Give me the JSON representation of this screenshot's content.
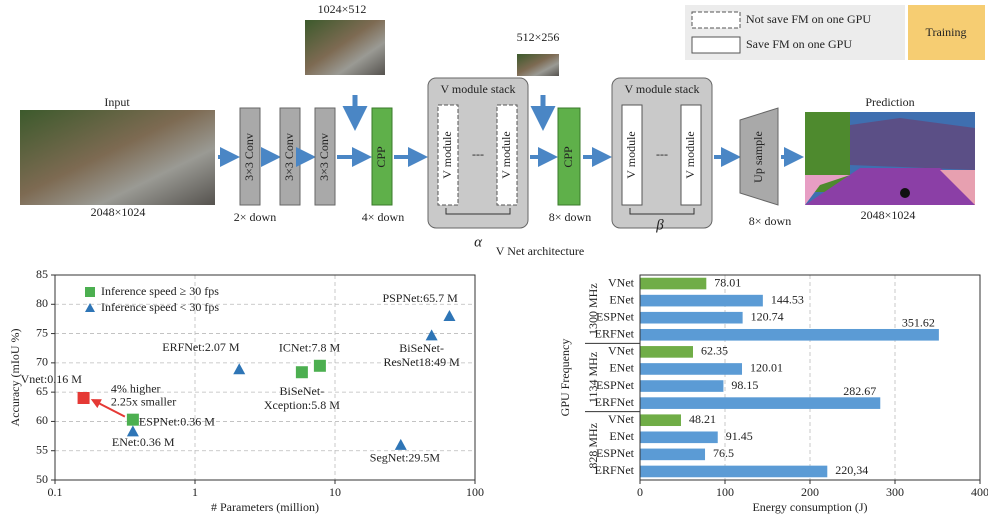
{
  "diagram": {
    "sizes": {
      "mid": "1024×512",
      "small": "512×256"
    },
    "legend": {
      "dashed": "Not save FM on one GPU",
      "solid": "Save FM on one GPU",
      "training": "Training"
    },
    "input": {
      "label": "Input",
      "size": "2048×1024"
    },
    "conv": "3×3 Conv",
    "cpp": "CPP",
    "stack_title": "V module stack",
    "v_module": "V module",
    "dots": "---",
    "greek": [
      "α",
      "β"
    ],
    "downs": [
      "2× down",
      "4× down",
      "8× down",
      "8× down"
    ],
    "upsample": "Up sample",
    "prediction": {
      "label": "Prediction",
      "size": "2048×1024"
    },
    "caption": "V Net architecture"
  },
  "chart_data": [
    {
      "type": "scatter",
      "x_label": "# Parameters (million)",
      "y_label": "Accuracy (mIoU %)",
      "log_x": true,
      "xlim": [
        0.1,
        100
      ],
      "xticks": [
        0.1,
        1,
        10,
        100
      ],
      "ylim": [
        50,
        85
      ],
      "yticks": [
        50,
        55,
        60,
        65,
        70,
        75,
        80,
        85
      ],
      "grid": true,
      "legend": "top-left",
      "series": [
        {
          "name": "Inference speed ≥ 30 fps",
          "color": "#4caf50",
          "marker": "square",
          "x": [
            0.36,
            5.8,
            7.8
          ],
          "values": [
            60.3,
            68.4,
            69.5
          ],
          "labels": [
            [
              "ESPNet:0.36 M"
            ],
            [
              "BiSeNet-",
              "Xception:5.8 M"
            ],
            [
              "ICNet:7.8 M"
            ]
          ]
        },
        {
          "name": "Inference speed < 30 fps",
          "color": "#2e75b6",
          "marker": "triangle",
          "x": [
            0.36,
            2.07,
            49,
            65.7,
            29.5
          ],
          "values": [
            58.3,
            68.9,
            74.7,
            78,
            56
          ],
          "labels": [
            [
              "ENet:0.36 M"
            ],
            [
              "ERFNet:2.07 M"
            ],
            [
              "BiSeNet-",
              "ResNet18:49 M"
            ],
            [
              "PSPNet:65.7 M"
            ],
            [
              "SegNet:29.5M"
            ]
          ]
        },
        {
          "color": "#e53935",
          "marker": "square",
          "label_color": "#e53935",
          "x": [
            0.16
          ],
          "values": [
            64
          ],
          "labels": [
            [
              "Vnet:0.16 M"
            ]
          ]
        }
      ],
      "annotations": [
        "4% higher",
        "2.25x smaller"
      ],
      "annotation_color": "#5aaa3c"
    },
    {
      "type": "bar",
      "orientation": "horizontal",
      "x_label": "Energy consumption (J)",
      "y_label": "GPU Frequency",
      "xlim": [
        0,
        400
      ],
      "xticks": [
        0,
        100,
        200,
        300,
        400
      ],
      "grid": true,
      "colors": [
        "#70ad47",
        "#5b9bd5",
        "#5b9bd5",
        "#5b9bd5"
      ],
      "label_colors": [
        "#5aaa3c",
        "#222222",
        "#222222",
        "#222222"
      ],
      "groups": [
        {
          "name": "1300 MHz",
          "categories": [
            "VNet",
            "ENet",
            "ESPNet",
            "ERFNet"
          ],
          "values": [
            78.01,
            144.53,
            120.74,
            351.62
          ]
        },
        {
          "name": "1134 MHz",
          "categories": [
            "VNet",
            "ENet",
            "ESPNet",
            "ERFNet"
          ],
          "values": [
            62.35,
            120.01,
            98.15,
            282.67
          ]
        },
        {
          "name": "828 MHz",
          "categories": [
            "VNet",
            "ENet",
            "ESPNet",
            "ERFNet"
          ],
          "values": [
            48.21,
            91.45,
            76.5,
            220.34
          ],
          "value_labels": [
            "48.21",
            "91.45",
            "76.5",
            "220,34"
          ]
        }
      ]
    }
  ]
}
